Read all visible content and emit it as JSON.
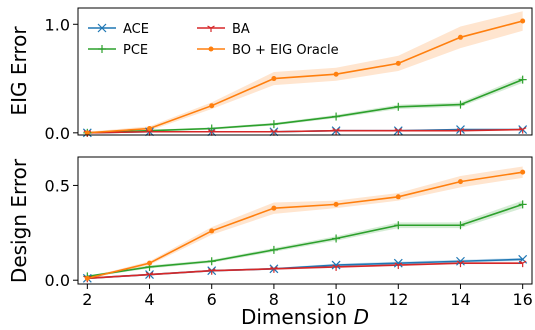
{
  "chart_data": [
    {
      "type": "line",
      "ylabel": "EIG Error",
      "ylim": [
        -0.02,
        1.15
      ],
      "yticks": [
        0.0,
        1.0
      ],
      "ytick_labels": [
        "0.0",
        "1.0"
      ],
      "x": [
        2,
        4,
        6,
        8,
        10,
        12,
        14,
        16
      ],
      "legend": "top-left",
      "series": [
        {
          "name": "ACE",
          "color": "#1f77b4",
          "marker": "x",
          "values": [
            0.0,
            0.01,
            0.01,
            0.01,
            0.02,
            0.02,
            0.03,
            0.03
          ],
          "band": [
            0.005,
            0.005,
            0.005,
            0.005,
            0.005,
            0.005,
            0.008,
            0.008
          ]
        },
        {
          "name": "PCE",
          "color": "#2ca02c",
          "marker": "+",
          "values": [
            0.0,
            0.02,
            0.04,
            0.08,
            0.15,
            0.24,
            0.26,
            0.49
          ],
          "band": [
            0.005,
            0.008,
            0.01,
            0.012,
            0.015,
            0.02,
            0.02,
            0.03
          ]
        },
        {
          "name": "BA",
          "color": "#d62728",
          "marker": "1",
          "values": [
            0.0,
            0.01,
            0.01,
            0.01,
            0.02,
            0.02,
            0.02,
            0.03
          ],
          "band": [
            0.005,
            0.005,
            0.005,
            0.005,
            0.005,
            0.005,
            0.005,
            0.005
          ]
        },
        {
          "name": "BO + EIG Oracle",
          "color": "#ff7f0e",
          "marker": "o",
          "values": [
            0.0,
            0.04,
            0.25,
            0.5,
            0.54,
            0.64,
            0.88,
            1.03
          ],
          "band": [
            0.01,
            0.02,
            0.03,
            0.06,
            0.06,
            0.07,
            0.1,
            0.09
          ]
        }
      ],
      "legend_entries": [
        {
          "label": "ACE",
          "color": "#1f77b4",
          "marker": "x"
        },
        {
          "label": "PCE",
          "color": "#2ca02c",
          "marker": "+"
        },
        {
          "label": "BA",
          "color": "#d62728",
          "marker": "1"
        },
        {
          "label": "BO + EIG Oracle",
          "color": "#ff7f0e",
          "marker": "o"
        }
      ]
    },
    {
      "type": "line",
      "ylabel": "Design Error",
      "xlabel": "Dimension D",
      "ylim": [
        -0.02,
        0.65
      ],
      "yticks": [
        0.0,
        0.5
      ],
      "ytick_labels": [
        "0.0",
        "0.5"
      ],
      "x": [
        2,
        4,
        6,
        8,
        10,
        12,
        14,
        16
      ],
      "xtick_labels": [
        "2",
        "4",
        "6",
        "8",
        "10",
        "12",
        "14",
        "16"
      ],
      "series": [
        {
          "name": "ACE",
          "color": "#1f77b4",
          "marker": "x",
          "values": [
            0.01,
            0.03,
            0.05,
            0.06,
            0.08,
            0.09,
            0.1,
            0.11
          ],
          "band": [
            0.005,
            0.005,
            0.005,
            0.005,
            0.007,
            0.008,
            0.008,
            0.008
          ]
        },
        {
          "name": "PCE",
          "color": "#2ca02c",
          "marker": "+",
          "values": [
            0.02,
            0.07,
            0.1,
            0.16,
            0.22,
            0.29,
            0.29,
            0.4
          ],
          "band": [
            0.005,
            0.008,
            0.008,
            0.01,
            0.012,
            0.015,
            0.015,
            0.02
          ]
        },
        {
          "name": "BA",
          "color": "#d62728",
          "marker": "1",
          "values": [
            0.01,
            0.03,
            0.05,
            0.06,
            0.07,
            0.08,
            0.09,
            0.09
          ],
          "band": [
            0.005,
            0.005,
            0.005,
            0.005,
            0.005,
            0.005,
            0.005,
            0.005
          ]
        },
        {
          "name": "BO + EIG Oracle",
          "color": "#ff7f0e",
          "marker": "o",
          "values": [
            0.01,
            0.09,
            0.26,
            0.38,
            0.4,
            0.44,
            0.52,
            0.57
          ],
          "band": [
            0.005,
            0.01,
            0.02,
            0.03,
            0.02,
            0.02,
            0.03,
            0.03
          ]
        }
      ]
    }
  ]
}
